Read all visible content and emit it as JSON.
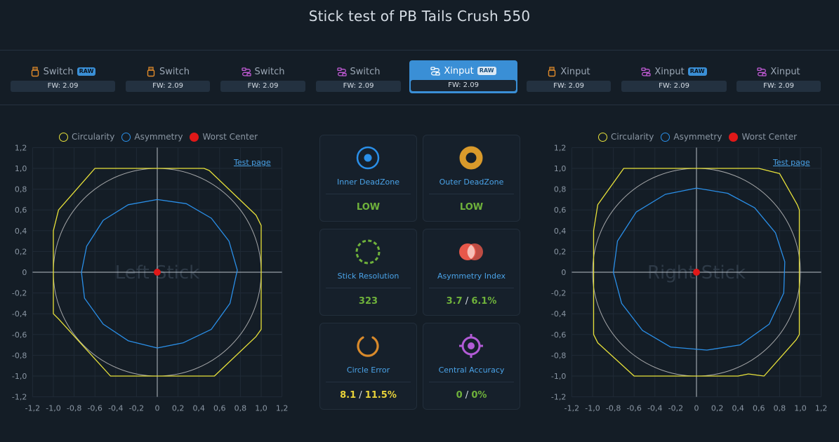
{
  "header": {
    "title": "Stick test of PB Tails Crush 550"
  },
  "tabs": [
    {
      "label": "Switch",
      "raw": "RAW",
      "fw": "FW: 2.09",
      "icon": "usb-icon",
      "icon_color": "#e08a2a",
      "active": false
    },
    {
      "label": "Switch",
      "raw": "",
      "fw": "FW: 2.09",
      "icon": "usb-icon",
      "icon_color": "#e08a2a",
      "active": false
    },
    {
      "label": "Switch",
      "raw": "",
      "fw": "FW: 2.09",
      "icon": "cable-icon",
      "icon_color": "#c25bd6",
      "active": false
    },
    {
      "label": "Switch",
      "raw": "",
      "fw": "FW: 2.09",
      "icon": "cable-icon",
      "icon_color": "#c25bd6",
      "active": false
    },
    {
      "label": "Xinput",
      "raw": "RAW",
      "fw": "FW: 2.09",
      "icon": "cable-icon",
      "icon_color": "#ffffff",
      "active": true
    },
    {
      "label": "Xinput",
      "raw": "",
      "fw": "FW: 2.09",
      "icon": "usb-icon",
      "icon_color": "#e08a2a",
      "active": false
    },
    {
      "label": "Xinput",
      "raw": "RAW",
      "fw": "FW: 2.09",
      "icon": "cable-icon",
      "icon_color": "#c25bd6",
      "active": false
    },
    {
      "label": "Xinput",
      "raw": "",
      "fw": "FW: 2.09",
      "icon": "cable-icon",
      "icon_color": "#c25bd6",
      "active": false
    }
  ],
  "legend": {
    "circularity": "Circularity",
    "asymmetry": "Asymmetry",
    "worst_center": "Worst Center"
  },
  "test_page_link": "Test page",
  "left_stick": {
    "label": "Left Stick"
  },
  "right_stick": {
    "label": "Right Stick"
  },
  "metrics": {
    "inner_deadzone": {
      "name": "Inner DeadZone",
      "value": "LOW"
    },
    "outer_deadzone": {
      "name": "Outer DeadZone",
      "value": "LOW"
    },
    "stick_resolution": {
      "name": "Stick Resolution",
      "value": "323"
    },
    "asymmetry_index": {
      "name": "Asymmetry Index",
      "value_a": "3.7",
      "value_b": "6.1%"
    },
    "circle_error": {
      "name": "Circle Error",
      "value_a": "8.1",
      "value_b": "11.5%"
    },
    "central_accuracy": {
      "name": "Central Accuracy",
      "value_a": "0",
      "value_b": "0%"
    }
  },
  "axis_ticks": [
    "-1,2",
    "-1,0",
    "-0,8",
    "-0,6",
    "-0,4",
    "-0,2",
    "0",
    "0,2",
    "0,4",
    "0,6",
    "0,8",
    "1,0",
    "1,2"
  ],
  "colors": {
    "circularity": "#e8e23a",
    "asymmetry": "#2a8fe8",
    "worst_center": "#e01818",
    "reference_circle": "#c8c8c8",
    "accent": "#3a8fd6",
    "good": "#6fb23b",
    "warn": "#e8d23a"
  },
  "chart_data": [
    {
      "type": "scatter",
      "title": "Left Stick",
      "xlim": [
        -1.2,
        1.2
      ],
      "ylim": [
        -1.2,
        1.2
      ],
      "grid": true,
      "legend": "top",
      "series": [
        {
          "name": "Circularity",
          "points": [
            [
              -1.0,
              0.4
            ],
            [
              -0.95,
              0.6
            ],
            [
              -0.6,
              1.0
            ],
            [
              0.45,
              1.0
            ],
            [
              0.5,
              0.98
            ],
            [
              0.95,
              0.55
            ],
            [
              1.0,
              0.45
            ],
            [
              1.0,
              -0.55
            ],
            [
              0.95,
              -0.62
            ],
            [
              0.55,
              -1.0
            ],
            [
              -0.45,
              -1.0
            ],
            [
              -0.95,
              -0.45
            ],
            [
              -1.0,
              -0.4
            ]
          ]
        },
        {
          "name": "Asymmetry",
          "points": [
            [
              0.0,
              0.7
            ],
            [
              0.28,
              0.66
            ],
            [
              0.52,
              0.52
            ],
            [
              0.69,
              0.3
            ],
            [
              0.77,
              0.02
            ],
            [
              0.7,
              -0.3
            ],
            [
              0.52,
              -0.55
            ],
            [
              0.25,
              -0.68
            ],
            [
              0.0,
              -0.73
            ],
            [
              -0.28,
              -0.66
            ],
            [
              -0.52,
              -0.5
            ],
            [
              -0.7,
              -0.25
            ],
            [
              -0.73,
              0.0
            ],
            [
              -0.68,
              0.25
            ],
            [
              -0.52,
              0.5
            ],
            [
              -0.28,
              0.65
            ]
          ]
        },
        {
          "name": "Worst Center",
          "points": [
            [
              0,
              0
            ]
          ]
        }
      ]
    },
    {
      "type": "scatter",
      "title": "Right Stick",
      "xlim": [
        -1.2,
        1.2
      ],
      "ylim": [
        -1.2,
        1.2
      ],
      "grid": true,
      "legend": "top",
      "series": [
        {
          "name": "Circularity",
          "points": [
            [
              -0.99,
              0.4
            ],
            [
              -0.95,
              0.65
            ],
            [
              -0.7,
              1.0
            ],
            [
              0.6,
              1.0
            ],
            [
              0.8,
              0.95
            ],
            [
              0.97,
              0.65
            ],
            [
              0.99,
              0.6
            ],
            [
              0.99,
              -0.6
            ],
            [
              0.96,
              -0.65
            ],
            [
              0.65,
              -1.0
            ],
            [
              0.5,
              -0.98
            ],
            [
              0.4,
              -1.0
            ],
            [
              -0.6,
              -1.0
            ],
            [
              -0.95,
              -0.68
            ],
            [
              -0.99,
              -0.6
            ]
          ]
        },
        {
          "name": "Asymmetry",
          "points": [
            [
              0.0,
              0.81
            ],
            [
              0.3,
              0.76
            ],
            [
              0.56,
              0.62
            ],
            [
              0.76,
              0.38
            ],
            [
              0.85,
              0.1
            ],
            [
              0.84,
              -0.2
            ],
            [
              0.7,
              -0.5
            ],
            [
              0.42,
              -0.7
            ],
            [
              0.1,
              -0.75
            ],
            [
              -0.25,
              -0.72
            ],
            [
              -0.52,
              -0.56
            ],
            [
              -0.72,
              -0.3
            ],
            [
              -0.8,
              0.0
            ],
            [
              -0.76,
              0.3
            ],
            [
              -0.58,
              0.58
            ],
            [
              -0.3,
              0.75
            ]
          ]
        },
        {
          "name": "Worst Center",
          "points": [
            [
              0,
              0
            ]
          ]
        }
      ]
    }
  ]
}
